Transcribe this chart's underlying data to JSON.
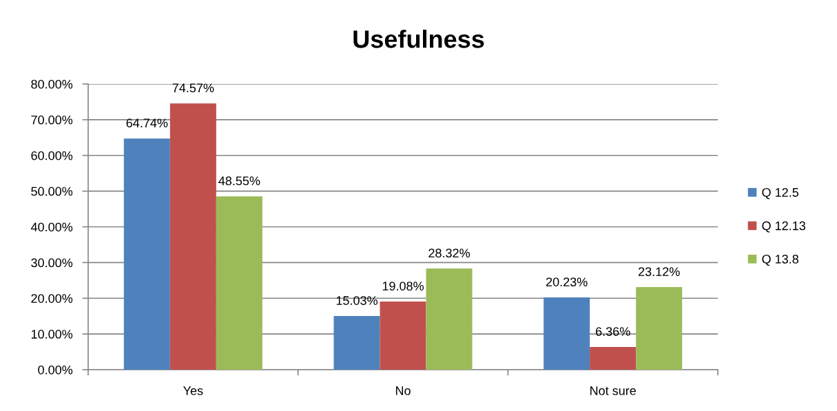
{
  "chart_data": {
    "type": "bar",
    "title": "Usefulness",
    "categories": [
      "Yes",
      "No",
      "Not sure"
    ],
    "series": [
      {
        "name": "Q 12.5",
        "color": "#4f81bd",
        "values": [
          64.74,
          15.03,
          20.23
        ],
        "value_labels": [
          "64.74%",
          "15.03%",
          "20.23%"
        ]
      },
      {
        "name": "Q 12.13",
        "color": "#c0504d",
        "values": [
          74.57,
          19.08,
          6.36
        ],
        "value_labels": [
          "74.57%",
          "19.08%",
          "6.36%"
        ]
      },
      {
        "name": "Q 13.8",
        "color": "#9bbb59",
        "values": [
          48.55,
          28.32,
          23.12
        ],
        "value_labels": [
          "48.55%",
          "28.32%",
          "23.12%"
        ]
      }
    ],
    "ylim": [
      0,
      80
    ],
    "yticks": [
      {
        "value": 0,
        "label": "0.00%"
      },
      {
        "value": 10,
        "label": "10.00%"
      },
      {
        "value": 20,
        "label": "20.00%"
      },
      {
        "value": 30,
        "label": "30.00%"
      },
      {
        "value": 40,
        "label": "40.00%"
      },
      {
        "value": 50,
        "label": "50.00%"
      },
      {
        "value": 60,
        "label": "60.00%"
      },
      {
        "value": 70,
        "label": "70.00%"
      },
      {
        "value": 80,
        "label": "80.00%"
      }
    ],
    "grid": "y",
    "legend": "right"
  }
}
